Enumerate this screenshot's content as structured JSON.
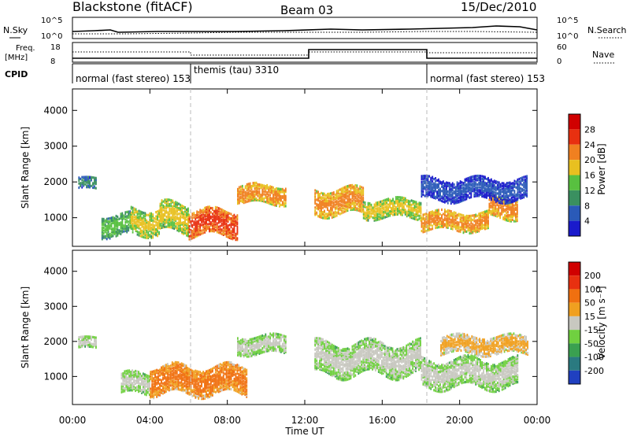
{
  "header": {
    "title": "Blackstone (fitACF)",
    "beam": "Beam 03",
    "date": "15/Dec/2010"
  },
  "top_panels": {
    "nsky_label": "N.Sky",
    "nsky_ticks": [
      "10^5",
      "10^0"
    ],
    "nsearch_label": "N.Search",
    "nsearch_ticks": [
      "10^5",
      "10^0"
    ],
    "freq_label_line1": "Freq.",
    "freq_label_line2": "[MHz]",
    "freq_ticks": [
      "18",
      "8"
    ],
    "nave_label": "Nave",
    "nave_ticks": [
      "60",
      "0"
    ],
    "cpid_label": "CPID",
    "cpid_segments": [
      {
        "text": "normal (fast stereo) 153",
        "start_hour": 0,
        "end_hour": 6
      },
      {
        "text": "themis (tau) 3310",
        "start_hour": 6,
        "end_hour": 18
      },
      {
        "text": "normal (fast stereo) 153",
        "start_hour": 18,
        "end_hour": 24
      }
    ]
  },
  "chart_data": [
    {
      "type": "heatmap",
      "name": "power",
      "xlabel": "",
      "ylabel": "Slant Range [km]",
      "xlim": [
        0,
        24
      ],
      "ylim": [
        200,
        4600
      ],
      "yticks": [
        "1000",
        "2000",
        "3000",
        "4000"
      ],
      "colorbar_label": "Power [dB]",
      "colorbar_ticks": [
        "4",
        "8",
        "12",
        "16",
        "20",
        "24",
        "28"
      ],
      "colors": [
        "#1a1acc",
        "#2a5ab8",
        "#3a9060",
        "#58c040",
        "#e8c020",
        "#f08020",
        "#e83010",
        "#d00000"
      ],
      "echo_bands": [
        {
          "t0": 0.3,
          "t1": 1.2,
          "r_center": 1950,
          "r_halfwidth": 150,
          "level": 2
        },
        {
          "t0": 1.5,
          "t1": 3.0,
          "r_center": 800,
          "r_halfwidth": 300,
          "level": 3
        },
        {
          "t0": 3.0,
          "t1": 4.5,
          "r_center": 900,
          "r_halfwidth": 350,
          "level": 4
        },
        {
          "t0": 4.5,
          "t1": 6.0,
          "r_center": 1000,
          "r_halfwidth": 400,
          "level": 4
        },
        {
          "t0": 6.0,
          "t1": 8.5,
          "r_center": 850,
          "r_halfwidth": 350,
          "level": 6
        },
        {
          "t0": 8.5,
          "t1": 11.0,
          "r_center": 1650,
          "r_halfwidth": 250,
          "level": 5
        },
        {
          "t0": 12.5,
          "t1": 15.0,
          "r_center": 1450,
          "r_halfwidth": 350,
          "level": 5
        },
        {
          "t0": 15.0,
          "t1": 18.0,
          "r_center": 1250,
          "r_halfwidth": 250,
          "level": 4
        },
        {
          "t0": 18.0,
          "t1": 21.5,
          "r_center": 900,
          "r_halfwidth": 250,
          "level": 5
        },
        {
          "t0": 21.5,
          "t1": 23.0,
          "r_center": 1300,
          "r_halfwidth": 300,
          "level": 5
        },
        {
          "t0": 18.0,
          "t1": 23.5,
          "r_center": 1800,
          "r_halfwidth": 300,
          "level": 1
        }
      ]
    },
    {
      "type": "heatmap",
      "name": "velocity",
      "xlabel": "Time UT",
      "ylabel": "Slant Range [km]",
      "xlim": [
        0,
        24
      ],
      "ylim": [
        200,
        4600
      ],
      "xticks": [
        "00:00",
        "04:00",
        "08:00",
        "12:00",
        "16:00",
        "20:00",
        "00:00"
      ],
      "yticks": [
        "1000",
        "2000",
        "3000",
        "4000"
      ],
      "colorbar_label": "Velocity [m s⁻¹]",
      "colorbar_ticks": [
        "200",
        "100",
        "50",
        "15",
        "-15",
        "-50",
        "-100",
        "-200"
      ],
      "colors": [
        "#2040c0",
        "#2a7a80",
        "#3aa050",
        "#70d040",
        "#c8c8c0",
        "#f0a020",
        "#f07010",
        "#e83010",
        "#d00000"
      ],
      "echo_bands": [
        {
          "t0": 0.3,
          "t1": 1.2,
          "r_center": 1950,
          "r_halfwidth": 150,
          "level": 4
        },
        {
          "t0": 2.5,
          "t1": 4.0,
          "r_center": 800,
          "r_halfwidth": 300,
          "level": 4
        },
        {
          "t0": 4.0,
          "t1": 9.0,
          "r_center": 900,
          "r_halfwidth": 400,
          "level": 6
        },
        {
          "t0": 8.5,
          "t1": 11.0,
          "r_center": 1900,
          "r_halfwidth": 250,
          "level": 4
        },
        {
          "t0": 12.5,
          "t1": 18.0,
          "r_center": 1500,
          "r_halfwidth": 450,
          "level": 4
        },
        {
          "t0": 18.0,
          "t1": 23.0,
          "r_center": 1100,
          "r_halfwidth": 400,
          "level": 4
        },
        {
          "t0": 19.0,
          "t1": 23.5,
          "r_center": 1900,
          "r_halfwidth": 250,
          "level": 5
        }
      ]
    }
  ]
}
